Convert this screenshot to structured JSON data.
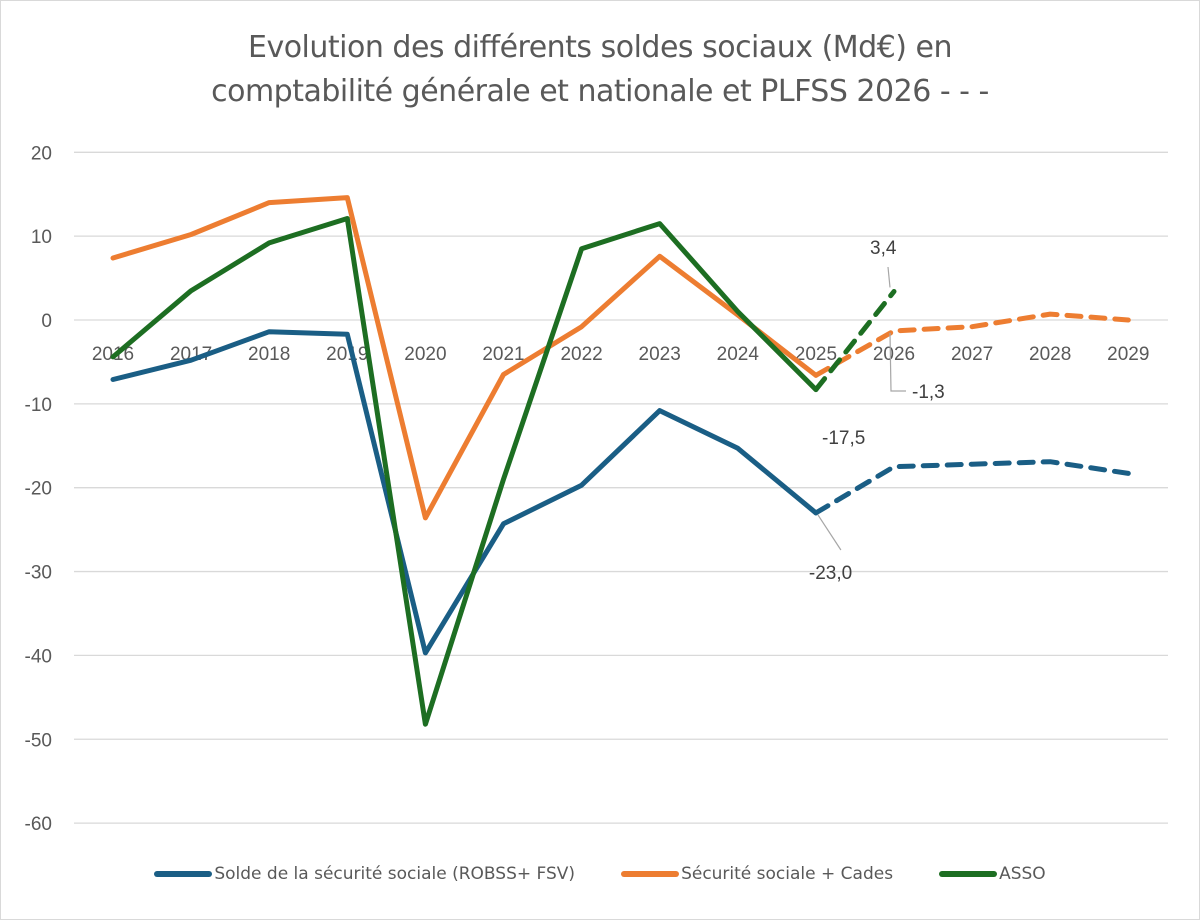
{
  "chart_data": {
    "type": "line",
    "title_line1": "Evolution des différents soldes sociaux (Md€) en",
    "title_line2": "comptabilité générale et nationale et PLFSS 2026 - - -",
    "xlabel": "",
    "ylabel": "",
    "ylim": [
      -60,
      20
    ],
    "yticks": [
      20,
      10,
      0,
      -10,
      -20,
      -30,
      -40,
      -50,
      -60
    ],
    "ytick_labels": [
      "20",
      "10",
      "0",
      "-10",
      "-20",
      "-30",
      "-40",
      "-50",
      "-60"
    ],
    "categories": [
      "2016",
      "2017",
      "2018",
      "2019",
      "2020",
      "2021",
      "2022",
      "2023",
      "2024",
      "2025",
      "2026",
      "2027",
      "2028",
      "2029"
    ],
    "grid": true,
    "legend_position": "bottom",
    "series": [
      {
        "name": "Solde de la sécurité sociale (ROBSS+ FSV)",
        "color": "#1a5e85",
        "values": [
          -7.1,
          -4.8,
          -1.4,
          -1.7,
          -39.7,
          -24.3,
          -19.7,
          -10.8,
          -15.3,
          -23.0,
          -17.5,
          -17.2,
          -16.9,
          -18.3
        ],
        "solid_until": "2025",
        "dashed_from": "2025"
      },
      {
        "name": "Sécurité sociale + Cades",
        "color": "#ed7d31",
        "values": [
          7.4,
          10.2,
          14.0,
          14.6,
          -23.6,
          -6.5,
          -0.8,
          7.6,
          0.6,
          -6.6,
          -1.3,
          -0.8,
          0.7,
          0.0
        ],
        "solid_until": "2025",
        "dashed_from": "2025"
      },
      {
        "name": "ASSO",
        "color": "#1d6e22",
        "values": [
          -4.4,
          3.5,
          9.2,
          12.1,
          -48.2,
          -19.0,
          8.5,
          11.5,
          1.0,
          -8.3,
          3.4,
          null,
          null,
          null
        ],
        "solid_until": "2025",
        "dashed_from": "2025"
      }
    ],
    "annotations": [
      {
        "text": "3,4",
        "series": "ASSO",
        "x": "2026",
        "value": 3.4
      },
      {
        "text": "-1,3",
        "series": "Sécurité sociale + Cades",
        "x": "2026",
        "value": -1.3
      },
      {
        "text": "-17,5",
        "series": "Solde de la sécurité sociale (ROBSS+ FSV)",
        "x": "2026",
        "value": -17.5
      },
      {
        "text": "-23,0",
        "series": "Solde de la sécurité sociale (ROBSS+ FSV)",
        "x": "2025",
        "value": -23.0
      }
    ]
  }
}
